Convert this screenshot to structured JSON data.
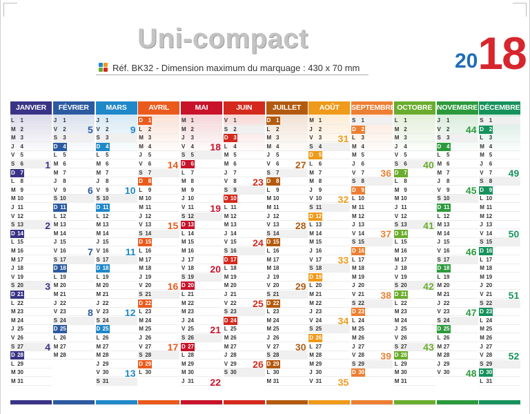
{
  "title": "Uni-compact",
  "subtitle": "Réf. BK32 - Dimension maximum du marquage : 430 x 70 mm",
  "year": {
    "prefix": "20",
    "suffix": "18"
  },
  "months": [
    {
      "name": "JANVIER",
      "color": "#3a3486",
      "start": 0,
      "days": 31,
      "weeks": [
        {
          "n": "1",
          "row": 6
        },
        {
          "n": "2",
          "row": 13
        },
        {
          "n": "3",
          "row": 20
        },
        {
          "n": "4",
          "row": 27
        }
      ]
    },
    {
      "name": "FÉVRIER",
      "color": "#2c5aa0",
      "start": 3,
      "days": 28,
      "weeks": [
        {
          "n": "5",
          "row": 2
        },
        {
          "n": "6",
          "row": 9
        },
        {
          "n": "7",
          "row": 16
        },
        {
          "n": "8",
          "row": 23
        }
      ]
    },
    {
      "name": "MARS",
      "color": "#1f88c8",
      "start": 3,
      "days": 31,
      "weeks": [
        {
          "n": "9",
          "row": 2
        },
        {
          "n": "10",
          "row": 9
        },
        {
          "n": "11",
          "row": 16
        },
        {
          "n": "12",
          "row": 23
        },
        {
          "n": "13",
          "row": 30
        }
      ]
    },
    {
      "name": "AVRIL",
      "color": "#ea5a1c",
      "start": 6,
      "days": 30,
      "weeks": [
        {
          "n": "14",
          "row": 6
        },
        {
          "n": "15",
          "row": 13
        },
        {
          "n": "16",
          "row": 20
        },
        {
          "n": "17",
          "row": 27
        }
      ]
    },
    {
      "name": "MAI",
      "color": "#c8132a",
      "start": 1,
      "days": 31,
      "weeks": [
        {
          "n": "18",
          "row": 4
        },
        {
          "n": "19",
          "row": 11
        },
        {
          "n": "20",
          "row": 18
        },
        {
          "n": "21",
          "row": 25
        },
        {
          "n": "22",
          "row": 32
        }
      ]
    },
    {
      "name": "JUIN",
      "color": "#d42a1e",
      "start": 4,
      "days": 30,
      "weeks": [
        {
          "n": "23",
          "row": 8
        },
        {
          "n": "24",
          "row": 15
        },
        {
          "n": "25",
          "row": 22
        },
        {
          "n": "26",
          "row": 29
        }
      ]
    },
    {
      "name": "JUILLET",
      "color": "#b35a0f",
      "start": 6,
      "days": 31,
      "weeks": [
        {
          "n": "27",
          "row": 6
        },
        {
          "n": "28",
          "row": 13
        },
        {
          "n": "29",
          "row": 20
        },
        {
          "n": "30",
          "row": 27
        }
      ]
    },
    {
      "name": "AOÛT",
      "color": "#ef9a1a",
      "start": 2,
      "days": 31,
      "weeks": [
        {
          "n": "31",
          "row": 3
        },
        {
          "n": "32",
          "row": 10
        },
        {
          "n": "33",
          "row": 17
        },
        {
          "n": "34",
          "row": 24
        },
        {
          "n": "35",
          "row": 31
        }
      ]
    },
    {
      "name": "SEPTEMBRE",
      "color": "#ec7f33",
      "start": 5,
      "days": 30,
      "weeks": [
        {
          "n": "36",
          "row": 7
        },
        {
          "n": "37",
          "row": 14
        },
        {
          "n": "38",
          "row": 21
        },
        {
          "n": "39",
          "row": 28
        }
      ]
    },
    {
      "name": "OCTOBRE",
      "color": "#6aac2d",
      "start": 0,
      "days": 31,
      "weeks": [
        {
          "n": "40",
          "row": 6
        },
        {
          "n": "41",
          "row": 13
        },
        {
          "n": "42",
          "row": 20
        },
        {
          "n": "43",
          "row": 27
        }
      ]
    },
    {
      "name": "NOVEMBRE",
      "color": "#2c9a3c",
      "start": 3,
      "days": 30,
      "weeks": [
        {
          "n": "44",
          "row": 2
        },
        {
          "n": "45",
          "row": 9
        },
        {
          "n": "46",
          "row": 16
        },
        {
          "n": "47",
          "row": 23
        },
        {
          "n": "48",
          "row": 30
        }
      ]
    },
    {
      "name": "DÉCEMBRE",
      "color": "#16925c",
      "start": 5,
      "days": 31,
      "weeks": [
        {
          "n": "49",
          "row": 7
        },
        {
          "n": "50",
          "row": 14
        },
        {
          "n": "51",
          "row": 21
        },
        {
          "n": "52",
          "row": 28
        }
      ]
    }
  ],
  "weekday_letters": [
    "L",
    "M",
    "M",
    "J",
    "V",
    "S",
    "D"
  ],
  "colors": {
    "title_grey": "#c3c3c3",
    "year_blue": "#1f6db7",
    "year_red": "#d7262d"
  }
}
